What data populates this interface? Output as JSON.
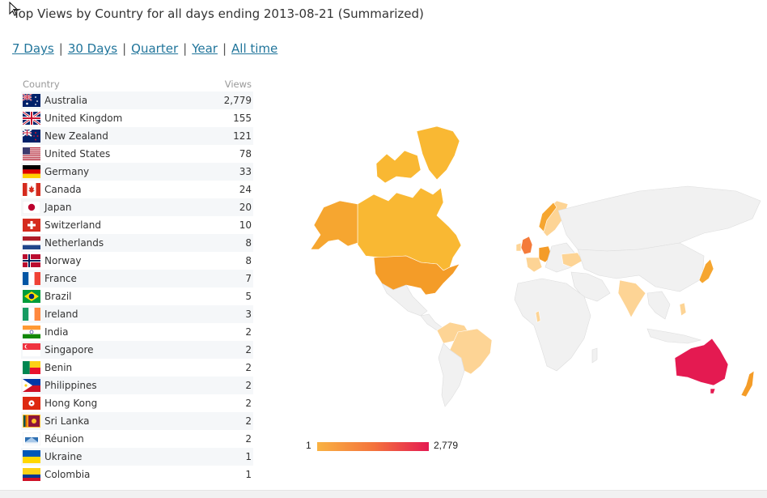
{
  "title": "Top Views by Country for all days ending 2013-08-21 (Summarized)",
  "periods": [
    "7 Days",
    "30 Days",
    "Quarter",
    "Year",
    "All time"
  ],
  "table": {
    "col_country": "Country",
    "col_views": "Views",
    "rows": [
      {
        "country": "Australia",
        "views": "2,779",
        "flag": "australia-flag-icon"
      },
      {
        "country": "United Kingdom",
        "views": "155",
        "flag": "united-kingdom-flag-icon"
      },
      {
        "country": "New Zealand",
        "views": "121",
        "flag": "new-zealand-flag-icon"
      },
      {
        "country": "United States",
        "views": "78",
        "flag": "united-states-flag-icon"
      },
      {
        "country": "Germany",
        "views": "33",
        "flag": "germany-flag-icon"
      },
      {
        "country": "Canada",
        "views": "24",
        "flag": "canada-flag-icon"
      },
      {
        "country": "Japan",
        "views": "20",
        "flag": "japan-flag-icon"
      },
      {
        "country": "Switzerland",
        "views": "10",
        "flag": "switzerland-flag-icon"
      },
      {
        "country": "Netherlands",
        "views": "8",
        "flag": "netherlands-flag-icon"
      },
      {
        "country": "Norway",
        "views": "8",
        "flag": "norway-flag-icon"
      },
      {
        "country": "France",
        "views": "7",
        "flag": "france-flag-icon"
      },
      {
        "country": "Brazil",
        "views": "5",
        "flag": "brazil-flag-icon"
      },
      {
        "country": "Ireland",
        "views": "3",
        "flag": "ireland-flag-icon"
      },
      {
        "country": "India",
        "views": "2",
        "flag": "india-flag-icon"
      },
      {
        "country": "Singapore",
        "views": "2",
        "flag": "singapore-flag-icon"
      },
      {
        "country": "Benin",
        "views": "2",
        "flag": "benin-flag-icon"
      },
      {
        "country": "Philippines",
        "views": "2",
        "flag": "philippines-flag-icon"
      },
      {
        "country": "Hong Kong",
        "views": "2",
        "flag": "hong-kong-flag-icon"
      },
      {
        "country": "Sri Lanka",
        "views": "2",
        "flag": "sri-lanka-flag-icon"
      },
      {
        "country": "Réunion",
        "views": "2",
        "flag": "reunion-flag-icon"
      },
      {
        "country": "Ukraine",
        "views": "1",
        "flag": "ukraine-flag-icon"
      },
      {
        "country": "Colombia",
        "views": "1",
        "flag": "colombia-flag-icon"
      }
    ]
  },
  "legend": {
    "min": "1",
    "max": "2,779"
  },
  "colors": {
    "link": "#21759b",
    "low": "#f9b243",
    "mid": "#f4743c",
    "high": "#e41a51",
    "pale": "#fdd495",
    "nodata": "#f1f1f1"
  }
}
